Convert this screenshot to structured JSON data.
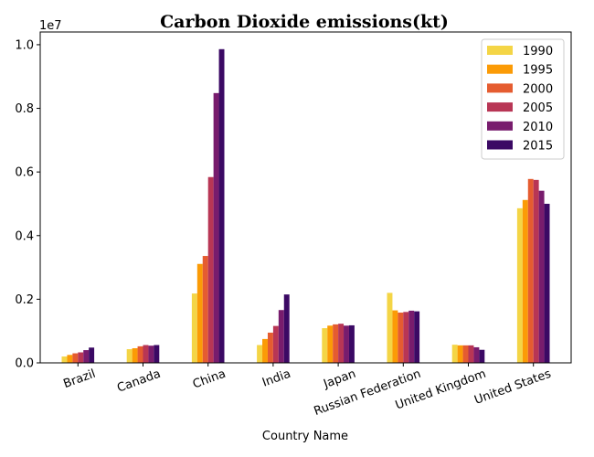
{
  "chart_data": {
    "type": "bar",
    "title": "Carbon Dioxide emissions(kt)",
    "xlabel": "Country Name",
    "ylabel": "",
    "offset_text": "1e7",
    "scale": 10000000,
    "ylim": [
      0,
      1.04
    ],
    "yticks": [
      "0.0",
      "0.2",
      "0.4",
      "0.6",
      "0.8",
      "1.0"
    ],
    "legend_position": "top-right",
    "categories": [
      "Brazil",
      "Canada",
      "China",
      "India",
      "Japan",
      "Russian Federation",
      "United Kingdom",
      "United States"
    ],
    "series": [
      {
        "name": "1990",
        "color": "#f4d546",
        "values": [
          0.02,
          0.043,
          0.218,
          0.056,
          0.109,
          0.22,
          0.057,
          0.486
        ]
      },
      {
        "name": "1995",
        "color": "#fb9b06",
        "values": [
          0.025,
          0.046,
          0.311,
          0.075,
          0.117,
          0.165,
          0.055,
          0.512
        ]
      },
      {
        "name": "2000",
        "color": "#e55c30",
        "values": [
          0.03,
          0.052,
          0.336,
          0.095,
          0.121,
          0.158,
          0.055,
          0.578
        ]
      },
      {
        "name": "2005",
        "color": "#b83655",
        "values": [
          0.033,
          0.056,
          0.584,
          0.116,
          0.123,
          0.16,
          0.055,
          0.575
        ]
      },
      {
        "name": "2010",
        "color": "#781c6d",
        "values": [
          0.04,
          0.054,
          0.848,
          0.166,
          0.117,
          0.164,
          0.049,
          0.541
        ]
      },
      {
        "name": "2015",
        "color": "#3b0964",
        "values": [
          0.048,
          0.056,
          0.986,
          0.215,
          0.118,
          0.162,
          0.041,
          0.5
        ]
      }
    ]
  }
}
